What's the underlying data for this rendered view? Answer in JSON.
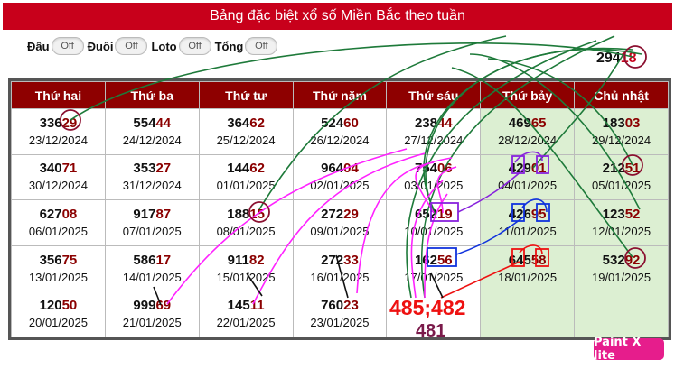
{
  "title": "Bảng đặc biệt xổ số Miền Bắc theo tuần",
  "filters": [
    {
      "label": "Đầu",
      "state": "Off"
    },
    {
      "label": "Đuôi",
      "state": "Off"
    },
    {
      "label": "Loto",
      "state": "Off"
    },
    {
      "label": "Tổng",
      "state": "Off"
    }
  ],
  "result": {
    "head": "294",
    "tail": "18"
  },
  "headers": [
    "Thứ hai",
    "Thứ ba",
    "Thứ tư",
    "Thứ năm",
    "Thứ sáu",
    "Thứ bảy",
    "Chủ nhật"
  ],
  "rows": [
    [
      {
        "pre": "336",
        "post": "29",
        "date": "23/12/2024"
      },
      {
        "pre": "554",
        "post": "44",
        "date": "24/12/2024"
      },
      {
        "pre": "364",
        "post": "62",
        "date": "25/12/2024"
      },
      {
        "pre": "524",
        "post": "60",
        "date": "26/12/2024"
      },
      {
        "pre": "238",
        "post": "44",
        "date": "27/12/2024"
      },
      {
        "pre": "469",
        "post": "65",
        "date": "28/12/2024"
      },
      {
        "pre": "183",
        "post": "03",
        "date": "29/12/2024"
      }
    ],
    [
      {
        "pre": "340",
        "post": "71",
        "date": "30/12/2024"
      },
      {
        "pre": "353",
        "post": "27",
        "date": "31/12/2024"
      },
      {
        "pre": "144",
        "post": "62",
        "date": "01/01/2025"
      },
      {
        "pre": "964",
        "post": "04",
        "date": "02/01/2025"
      },
      {
        "pre": "754",
        "post": "06",
        "date": "03/01/2025"
      },
      {
        "pre": "429",
        "post": "01",
        "date": "04/01/2025"
      },
      {
        "pre": "212",
        "post": "51",
        "date": "05/01/2025"
      }
    ],
    [
      {
        "pre": "627",
        "post": "08",
        "date": "06/01/2025"
      },
      {
        "pre": "917",
        "post": "87",
        "date": "07/01/2025"
      },
      {
        "pre": "188",
        "post": "15",
        "date": "08/01/2025"
      },
      {
        "pre": "272",
        "post": "29",
        "date": "09/01/2025"
      },
      {
        "pre": "652",
        "post": "19",
        "date": "10/01/2025"
      },
      {
        "pre": "426",
        "post": "95",
        "date": "11/01/2025"
      },
      {
        "pre": "123",
        "post": "52",
        "date": "12/01/2025"
      }
    ],
    [
      {
        "pre": "356",
        "post": "75",
        "date": "13/01/2025"
      },
      {
        "pre": "586",
        "post": "17",
        "date": "14/01/2025"
      },
      {
        "pre": "911",
        "post": "82",
        "date": "15/01/2025"
      },
      {
        "pre": "272",
        "post": "33",
        "date": "16/01/2025"
      },
      {
        "pre": "162",
        "post": "56",
        "date": "17/01/2025"
      },
      {
        "pre": "645",
        "post": "58",
        "date": "18/01/2025"
      },
      {
        "pre": "532",
        "post": "92",
        "date": "19/01/2025"
      }
    ],
    [
      {
        "pre": "120",
        "post": "50",
        "date": "20/01/2025"
      },
      {
        "pre": "999",
        "post": "69",
        "date": "21/01/2025"
      },
      {
        "pre": "145",
        "post": "11",
        "date": "22/01/2025"
      },
      {
        "pre": "760",
        "post": "23",
        "date": "23/01/2025"
      },
      null,
      null,
      null
    ]
  ],
  "prediction_main": "485;482",
  "prediction_alt": "481",
  "badge": "Paint X lite",
  "colors": {
    "title_bg": "#c8001b",
    "header_bg": "#8e0000",
    "weekend_bg": "#dcefd2",
    "number_tail": "#8b0000",
    "line_green": "#1e7a3a",
    "line_magenta": "#ff22ff",
    "line_blue": "#1133dd",
    "line_red": "#ee1111",
    "line_purple": "#8822dd"
  }
}
